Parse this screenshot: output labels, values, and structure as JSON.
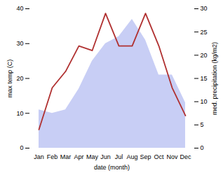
{
  "chart_data": {
    "type": "area",
    "xlabel": "date (month)",
    "ylabel": "max temp (C)",
    "y2label": "med. precipitation (kg/m2)",
    "categories": [
      "Jan",
      "Feb",
      "Mar",
      "Apr",
      "May",
      "Jun",
      "Jul",
      "Aug",
      "Sep",
      "Oct",
      "Nov",
      "Dec"
    ],
    "series": [
      {
        "type": "area",
        "color": "#c8cef5",
        "values": [
          11.0,
          10.0,
          11.0,
          17.0,
          25.0,
          30.0,
          32.0,
          37.0,
          31.0,
          21.0,
          21.0,
          13.0
        ]
      },
      {
        "type": "line",
        "axis": "y2",
        "color": "#b03030",
        "values": [
          4.0,
          13.0,
          16.5,
          22.0,
          21.0,
          29.0,
          22.0,
          22.0,
          29.0,
          22.0,
          13.0,
          7.0
        ]
      }
    ],
    "ylim": [
      0,
      40
    ],
    "yticks": [
      0,
      10,
      20,
      30,
      40
    ],
    "y2lim": [
      0,
      30
    ],
    "y2ticks": [
      0,
      5,
      10,
      15,
      20,
      25,
      30
    ],
    "grid": false
  }
}
